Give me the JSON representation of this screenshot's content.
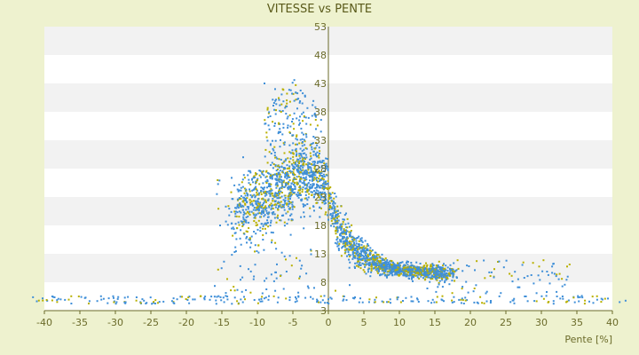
{
  "chart_data": {
    "type": "scatter",
    "title": "VITESSE vs PENTE",
    "xlabel": "Pente [%]",
    "ylabel": "",
    "xlim": [
      -40,
      40
    ],
    "ylim": [
      3,
      53
    ],
    "xticks": [
      -40,
      -35,
      -30,
      -25,
      -20,
      -15,
      -10,
      -5,
      0,
      5,
      10,
      15,
      20,
      25,
      30,
      35,
      40
    ],
    "yticks": [
      3,
      8,
      13,
      18,
      23,
      28,
      33,
      38,
      43,
      48,
      53
    ],
    "grid": "horizontal bands",
    "legend": "none",
    "colors": {
      "background": "#eef2cf",
      "plot": "#ffffff",
      "band": "#f2f2f2",
      "points_primary": "#3f8fd8",
      "points_secondary": "#b8b000",
      "axis": "#6b6b2a"
    },
    "series": [
      {
        "values_description": "dense cloud",
        "points": [
          [
            -9,
            43
          ],
          [
            -7.5,
            42
          ],
          [
            -6,
            39
          ],
          [
            -4,
            36
          ],
          [
            -3.5,
            34
          ],
          [
            -4.5,
            31
          ],
          [
            -5,
            27
          ],
          [
            -6,
            25
          ],
          [
            -7,
            24
          ],
          [
            -3,
            25
          ],
          [
            -2,
            23
          ],
          [
            -1,
            21
          ],
          [
            0,
            19
          ],
          [
            1,
            17
          ],
          [
            2,
            16
          ],
          [
            3,
            15
          ],
          [
            4,
            13.5
          ],
          [
            5,
            12.5
          ],
          [
            6,
            12
          ],
          [
            7,
            11
          ],
          [
            8,
            10.5
          ],
          [
            9,
            10.3
          ],
          [
            10,
            10
          ],
          [
            12,
            9.8
          ],
          [
            14,
            9.6
          ],
          [
            16,
            9.5
          ],
          [
            -12,
            30
          ],
          [
            -10,
            26
          ],
          [
            -11,
            22
          ],
          [
            -8,
            15
          ],
          [
            -6,
            12
          ],
          [
            -4,
            9
          ],
          [
            -2,
            7
          ],
          [
            0,
            5
          ],
          [
            1,
            6.5
          ],
          [
            3,
            7.5
          ]
        ]
      }
    ]
  }
}
